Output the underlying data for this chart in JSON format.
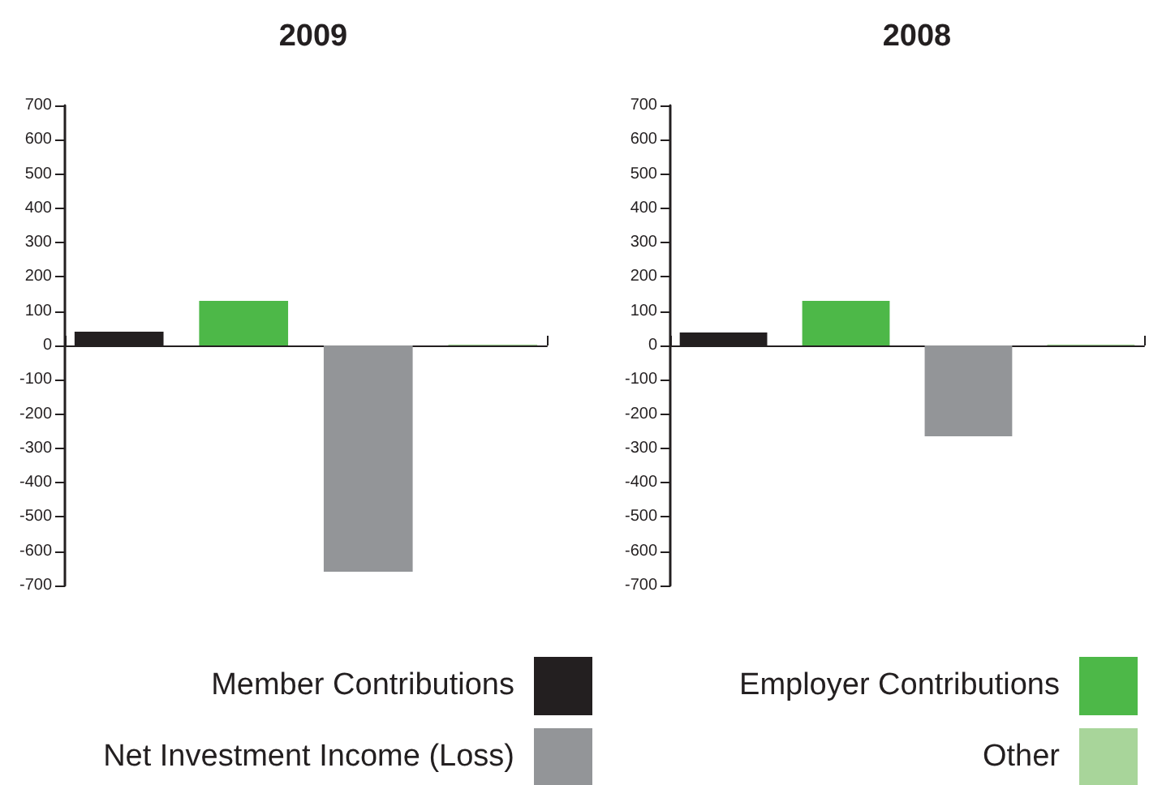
{
  "chart_data": [
    {
      "type": "bar",
      "title": "2009",
      "categories": [
        null
      ],
      "series": [
        {
          "color": "#231f20",
          "values": [
            40
          ]
        },
        {
          "color": "#4db848",
          "values": [
            130
          ]
        },
        {
          "color": "#939598",
          "values": [
            -660
          ]
        },
        {
          "color": "#a8d59a",
          "values": [
            3
          ]
        }
      ],
      "ylim": [
        -700,
        700
      ],
      "yticks": [
        -700,
        -600,
        -500,
        -400,
        -300,
        -200,
        -100,
        0,
        100,
        200,
        300,
        400,
        500,
        600,
        700
      ]
    },
    {
      "type": "bar",
      "title": "2008",
      "categories": [
        null
      ],
      "series": [
        {
          "name": "Member Contributions",
          "color": "#231f20",
          "values": [
            38
          ]
        },
        {
          "name": "Employer Contributions",
          "color": "#4db848",
          "values": [
            130
          ]
        },
        {
          "name": "Net Investment Income (Loss)",
          "color": "#939598",
          "values": [
            -265
          ]
        },
        {
          "name": "Other",
          "color": "#a8d59a",
          "values": [
            3
          ]
        }
      ],
      "ylim": [
        -700,
        700
      ],
      "yticks": [
        -700,
        -600,
        -500,
        -400,
        -300,
        -200,
        -100,
        0,
        100,
        200,
        300,
        400,
        500,
        600,
        700
      ],
      "legend": "bottom"
    }
  ]
}
